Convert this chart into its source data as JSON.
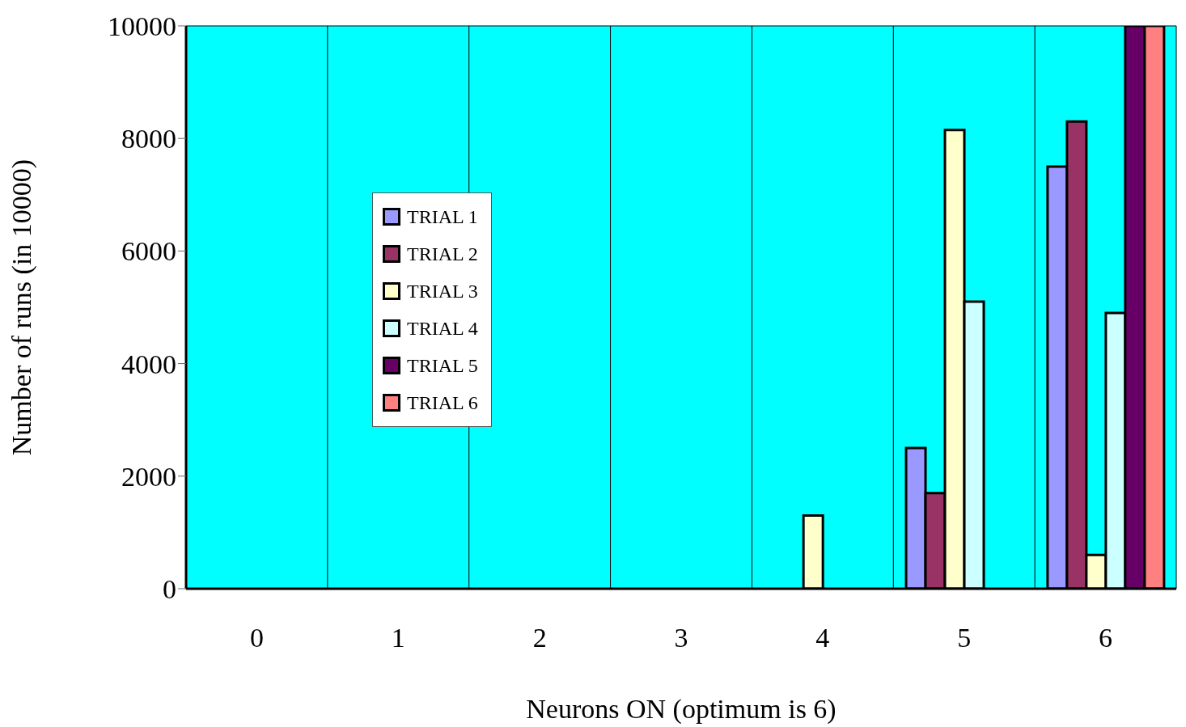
{
  "chart_data": {
    "type": "bar",
    "xlabel": "Neurons ON (optimum is 6)",
    "ylabel": "Number of runs (in 10000)",
    "categories": [
      "0",
      "1",
      "2",
      "3",
      "4",
      "5",
      "6"
    ],
    "series": [
      {
        "name": "TRIAL 1",
        "color": "#9999ff",
        "values": [
          0,
          0,
          0,
          0,
          0,
          2500,
          7500
        ]
      },
      {
        "name": "TRIAL 2",
        "color": "#993366",
        "values": [
          0,
          0,
          0,
          0,
          0,
          1700,
          8300
        ]
      },
      {
        "name": "TRIAL 3",
        "color": "#ffffcc",
        "values": [
          0,
          0,
          0,
          0,
          1300,
          8150,
          600
        ]
      },
      {
        "name": "TRIAL 4",
        "color": "#ccffff",
        "values": [
          0,
          0,
          0,
          0,
          0,
          5100,
          4900
        ]
      },
      {
        "name": "TRIAL 5",
        "color": "#660066",
        "values": [
          0,
          0,
          0,
          0,
          0,
          0,
          10000
        ]
      },
      {
        "name": "TRIAL 6",
        "color": "#ff8080",
        "values": [
          0,
          0,
          0,
          0,
          0,
          0,
          10000
        ]
      }
    ],
    "ylim": [
      0,
      10000
    ],
    "yticks": [
      0,
      2000,
      4000,
      6000,
      8000,
      10000
    ],
    "grid": true,
    "legend": "left"
  }
}
